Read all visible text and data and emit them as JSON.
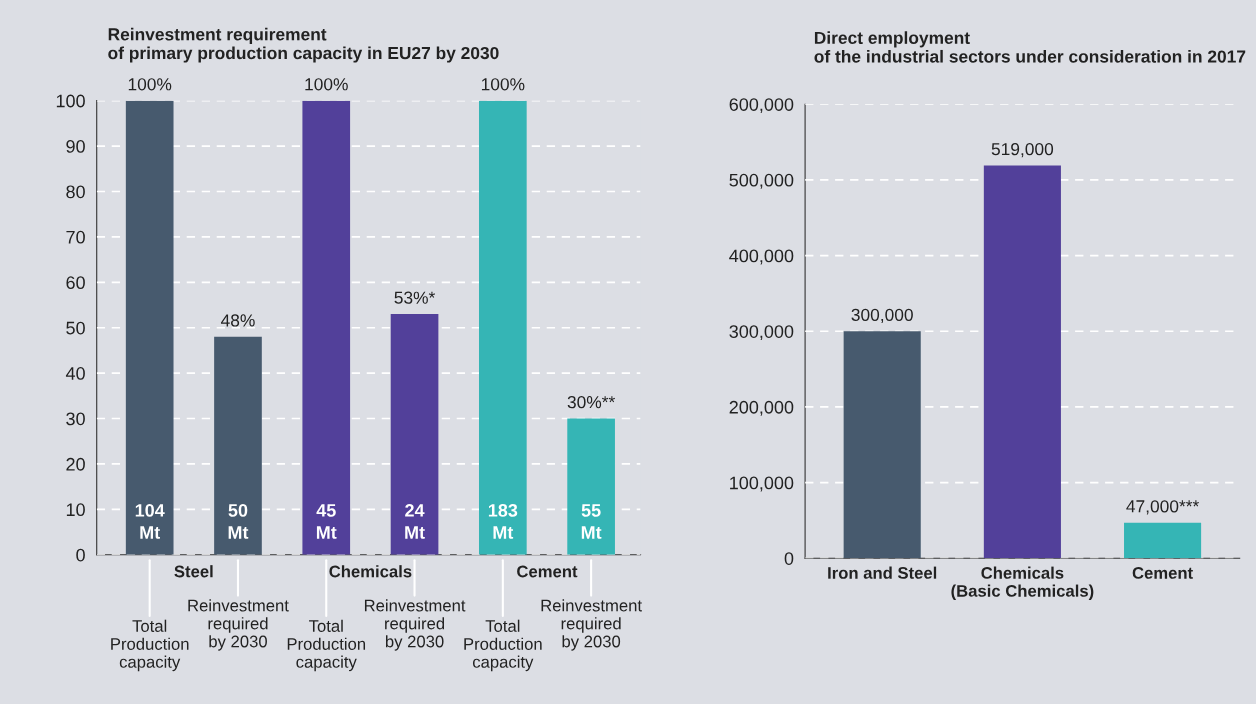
{
  "chart_data": [
    {
      "type": "bar",
      "title": "Reinvestment requirement\nof primary production capacity in EU27 by 2030",
      "categories": [
        "Steel",
        "Chemicals",
        "Cement"
      ],
      "series": [
        {
          "name": "Total\nProduction\ncapacity",
          "colors": [
            "#475a6e",
            "#52409a",
            "#35b5b5"
          ],
          "values": [
            100,
            100,
            100
          ],
          "value_labels": [
            "100%",
            "100%",
            "100%"
          ]
        },
        {
          "name": "Reinvestment\nrequired\nby 2030",
          "colors": [
            "#475a6e",
            "#52409a",
            "#35b5b5"
          ],
          "values": [
            48,
            53,
            30
          ],
          "value_labels": [
            "48%",
            "53%*",
            "30%**"
          ]
        }
      ],
      "annotations": [
        "104\nMt",
        "45\nMt",
        "183\nMt",
        "50\nMt",
        "24\nMt",
        "55\nMt"
      ],
      "ylim": [
        0,
        100
      ],
      "yticks": [
        0,
        10,
        20,
        30,
        40,
        50,
        60,
        70,
        80,
        90,
        100
      ],
      "grid": "y",
      "legend": false
    },
    {
      "type": "bar",
      "title": "Direct employment\nof the industrial sectors under consideration in 2017",
      "categories": [
        "Iron and Steel",
        "Chemicals\n(Basic Chemicals)",
        "Cement"
      ],
      "colors": [
        "#475a6e",
        "#52409a",
        "#35b5b5"
      ],
      "values": [
        300000,
        519000,
        47000
      ],
      "value_labels": [
        "300,000",
        "519,000",
        "47,000***"
      ],
      "ylim": [
        0,
        600000
      ],
      "yticks": [
        {
          "value": 0,
          "label": "0"
        },
        {
          "value": 100000,
          "label": "100,000"
        },
        {
          "value": 200000,
          "label": "200,000"
        },
        {
          "value": 300000,
          "label": "300,000"
        },
        {
          "value": 400000,
          "label": "400,000"
        },
        {
          "value": 500000,
          "label": "500,000"
        },
        {
          "value": 600000,
          "label": "600,000"
        }
      ],
      "grid": "y",
      "legend": false
    }
  ]
}
